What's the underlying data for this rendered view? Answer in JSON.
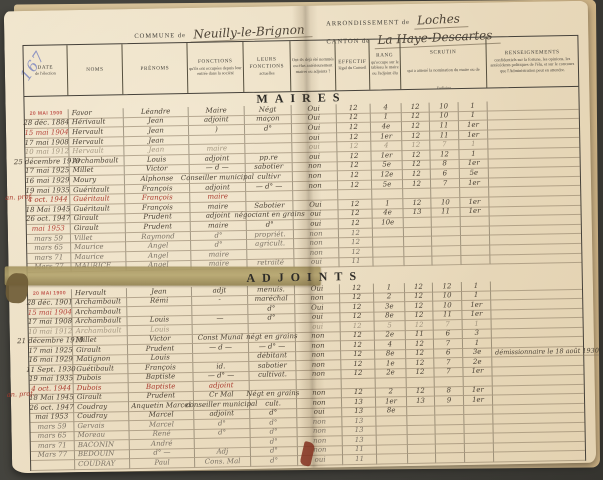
{
  "page": {
    "page_number": "167",
    "commune_label": "COMMUNE de",
    "commune_value": "Neuilly-le-Brignon",
    "arrondissement_label": "ARRONDISSEMENT de",
    "arrondissement_value": "Loches",
    "canton_label": "CANTON de",
    "canton_value": "La Haye-Descartes",
    "margin_note_maires": "an. prof.",
    "margin_note_adjoints": "an. prof.",
    "ink_colors": {
      "dark": "#4b4236",
      "red": "#a8392c",
      "faint": "#a2957f",
      "pencil": "#7b7265",
      "stamp": "#c25a50",
      "page_number_blue": "#7e88c0"
    }
  },
  "table": {
    "headers": {
      "date": {
        "main": "DATE",
        "sub": "de l'élection"
      },
      "noms": {
        "main": "NOMS",
        "sub": ""
      },
      "prenoms": {
        "main": "PRÉNOMS",
        "sub": ""
      },
      "fonctions": {
        "main": "FONCTIONS",
        "sub": "qu'ils ont occupées depuis leur entrée dans la société"
      },
      "actuelles": {
        "main": "LEURS FONCTIONS",
        "sub": "actuelles"
      },
      "deja": {
        "main": "",
        "sub": "Ont-ils déjà été nommés ou élus antérieurement maires ou adjoints ?"
      },
      "effectif": {
        "main": "EFFECTIF",
        "sub": "légal du Conseil"
      },
      "rang": {
        "main": "RANG",
        "sub": "qu'occupe sur le tableau le maire ou l'adjoint élu"
      },
      "scrutin": {
        "main": "SCRUTIN",
        "sub": "qui a amené la nomination du maire ou de l'adjoint"
      },
      "votants": {
        "main": "VOTANTS",
        "sub": ""
      },
      "voix": {
        "main": "NOMBRE",
        "sub": "de voix obtenues"
      },
      "tour": {
        "main": "",
        "sub": "Indiquer à quel tour de scrutin il a été élu"
      },
      "rens": {
        "main": "RENSEIGNEMENTS",
        "sub": "confidentiels sur la fortune, les opinions, les antécédents politiques de l'élu, et sur le concours que l'Administration peut en attendre."
      }
    },
    "sections": [
      {
        "title": "MAIRES",
        "rows": [
          {
            "date": "20 MAI 1900",
            "date_style": "stamp",
            "nom": "Favor",
            "prenom": "Léandre",
            "fonction": "Maire",
            "actuelle": "Négt",
            "deja": "Oui",
            "effectif": "12",
            "rang": "4",
            "votants": "12",
            "voix": "10",
            "tour": "1"
          },
          {
            "date": "28 déc. 1884",
            "nom": "Hérivault",
            "prenom": "Jean",
            "fonction": "adjoint",
            "actuelle": "maçon",
            "deja": "Oui",
            "effectif": "12",
            "rang": "1",
            "votants": "12",
            "voix": "10",
            "tour": "1"
          },
          {
            "date": "15 mai 1904",
            "date_style": "red",
            "nom": "Hervault",
            "prenom": "Jean",
            "fonction": ")",
            "actuelle": "d°",
            "deja": "Oui",
            "effectif": "12",
            "rang": "4e",
            "votants": "12",
            "voix": "11",
            "tour": "1er"
          },
          {
            "date": "17 mai 1908",
            "nom": "Hervault",
            "prenom": "Jean",
            "fonction": "",
            "actuelle": "",
            "deja": "oui",
            "effectif": "12",
            "rang": "1er",
            "votants": "12",
            "voix": "11",
            "tour": "1er"
          },
          {
            "date": "10 mai 1912",
            "ink": "faint",
            "nom": "Hervault",
            "prenom": "Jean",
            "fonction": "maire",
            "actuelle": "",
            "deja": "oui",
            "effectif": "12",
            "rang": "4",
            "votants": "12",
            "voix": "7",
            "tour": "1"
          },
          {
            "date": "25 décembre 1919",
            "nom": "Archambault",
            "prenom": "Louis",
            "fonction": "adjoint",
            "actuelle": "pp.re",
            "deja": "oui",
            "effectif": "12",
            "rang": "1er",
            "votants": "12",
            "voix": "12",
            "tour": "1"
          },
          {
            "date": "17 mai 1925",
            "nom": "Millet",
            "prenom": "Victor",
            "fonction": "— d —",
            "actuelle": "sabotier",
            "deja": "non",
            "effectif": "12",
            "rang": "5e",
            "votants": "12",
            "voix": "8",
            "tour": "1er"
          },
          {
            "date": "16 mai 1929",
            "nom": "Moury",
            "prenom": "Alphonse",
            "fonction": "Conseiller municipal",
            "actuelle": "cultivr",
            "deja": "non",
            "effectif": "12",
            "rang": "12e",
            "votants": "12",
            "voix": "6",
            "tour": "5e"
          },
          {
            "date": "19 mai 1935",
            "nom": "Guéritault",
            "prenom": "François",
            "fonction": "adjoint",
            "actuelle": "— d° —",
            "deja": "non",
            "effectif": "12",
            "rang": "5e",
            "votants": "12",
            "voix": "7",
            "tour": "1er"
          },
          {
            "date": "4 oct. 1944",
            "ink": "red",
            "nom": "Guéritault",
            "prenom": "François",
            "fonction": "maire",
            "actuelle": "",
            "deja": "",
            "effectif": "",
            "rang": "",
            "votants": "",
            "voix": "",
            "tour": ""
          },
          {
            "date": "18 Mai 1945",
            "nom": "Guéritault",
            "prenom": "François",
            "fonction": "maire",
            "actuelle": "Sabotier",
            "deja": "Oui",
            "effectif": "12",
            "rang": "1",
            "votants": "12",
            "voix": "10",
            "tour": "1er"
          },
          {
            "date": "26 oct. 1947",
            "nom": "Girault",
            "prenom": "Prudent",
            "fonction": "adjoint",
            "actuelle": "négociant en grains",
            "deja": "oui",
            "effectif": "12",
            "rang": "4e",
            "votants": "13",
            "voix": "11",
            "tour": "1er"
          },
          {
            "date": "mai 1953",
            "date_style": "red",
            "nom": "Girault",
            "prenom": "Prudent",
            "fonction": "maire",
            "actuelle": "d°",
            "deja": "oui",
            "effectif": "12",
            "rang": "10e",
            "votants": "",
            "voix": "",
            "tour": ""
          },
          {
            "date": "mars 59",
            "ink": "pencil",
            "nom": "Villet",
            "prenom": "Raymond",
            "fonction": "d°",
            "actuelle": "propriét.",
            "deja": "non",
            "effectif": "12",
            "rang": "",
            "votants": "",
            "voix": "",
            "tour": ""
          },
          {
            "date": "mars 65",
            "ink": "pencil",
            "nom": "Maurice",
            "prenom": "Angel",
            "fonction": "d°",
            "actuelle": "agricult.",
            "deja": "non",
            "effectif": "12",
            "rang": "",
            "votants": "",
            "voix": "",
            "tour": ""
          },
          {
            "date": "mars 71",
            "ink": "pencil",
            "nom": "Maurice",
            "prenom": "Angel",
            "fonction": "maire",
            "actuelle": "",
            "deja": "non",
            "effectif": "12",
            "rang": "",
            "votants": "",
            "voix": "",
            "tour": ""
          },
          {
            "date": "Mars 77",
            "ink": "pencil",
            "nom": "MAURICE",
            "prenom": "Angel",
            "fonction": "maire",
            "actuelle": "retraité",
            "deja": "oui",
            "effectif": "11",
            "rang": "",
            "votants": "",
            "voix": "",
            "tour": ""
          }
        ]
      },
      {
        "title": "ADJOINTS",
        "rows": [
          {
            "date": "20 MAI 1900",
            "date_style": "stamp",
            "nom": "Hervault",
            "prenom": "Jean",
            "fonction": "adjt",
            "actuelle": "menuis.",
            "deja": "Oui",
            "effectif": "12",
            "rang": "1",
            "votants": "12",
            "voix": "12",
            "tour": "1"
          },
          {
            "date": "28 déc. 1901",
            "nom": "Archambault",
            "prenom": "Rémi",
            "fonction": "-",
            "actuelle": "maréchal",
            "deja": "non",
            "effectif": "12",
            "rang": "2",
            "votants": "12",
            "voix": "10",
            "tour": "1"
          },
          {
            "date": "15 mai 1904",
            "date_style": "red",
            "nom": "Archambault",
            "prenom": "",
            "fonction": "",
            "actuelle": "d°",
            "deja": "Oui",
            "effectif": "12",
            "rang": "3e",
            "votants": "12",
            "voix": "10",
            "tour": "1er"
          },
          {
            "date": "17 mai 1908",
            "nom": "Archambault",
            "prenom": "Louis",
            "fonction": "—",
            "actuelle": "d°",
            "deja": "oui",
            "effectif": "12",
            "rang": "8e",
            "votants": "12",
            "voix": "11",
            "tour": "1er"
          },
          {
            "date": "10 mai 1912",
            "ink": "faint",
            "nom": "Archambault",
            "prenom": "Louis",
            "fonction": "",
            "actuelle": "",
            "deja": "oui",
            "effectif": "12",
            "rang": "5",
            "votants": "12",
            "voix": "7",
            "tour": "1"
          },
          {
            "date": "21 décembre 1919",
            "nom": "Millet",
            "prenom": "Victor",
            "fonction": "Const Munal",
            "actuelle": "négt en grains",
            "deja": "non",
            "effectif": "12",
            "rang": "2e",
            "votants": "11",
            "voix": "6",
            "tour": "3"
          },
          {
            "date": "17 mai 1925",
            "nom": "Girault",
            "prenom": "Prudent",
            "fonction": "— d —",
            "actuelle": "— d° —",
            "deja": "non",
            "effectif": "12",
            "rang": "4",
            "votants": "12",
            "voix": "7",
            "tour": "1"
          },
          {
            "date": "16 mai 1929",
            "nom": "Matignon",
            "prenom": "Louis",
            "fonction": "",
            "actuelle": "débitant",
            "deja": "non",
            "effectif": "12",
            "rang": "8e",
            "votants": "12",
            "voix": "6",
            "tour": "3e",
            "rens": "démissionnaire le 18 août 1930"
          },
          {
            "date": "11 Sept. 1930",
            "nom": "Guétibault",
            "prenom": "François",
            "fonction": "id.",
            "actuelle": "sabotier",
            "deja": "non",
            "effectif": "12",
            "rang": "1e",
            "votants": "12",
            "voix": "7",
            "tour": "2e"
          },
          {
            "date": "19 mai 1935",
            "nom": "Dubois",
            "prenom": "Baptiste",
            "fonction": "— d° —",
            "actuelle": "cultivat.",
            "deja": "non",
            "effectif": "12",
            "rang": "2e",
            "votants": "12",
            "voix": "7",
            "tour": "1er"
          },
          {
            "date": "4 oct. 1944",
            "ink": "red",
            "nom": "Dubois",
            "prenom": "Baptiste",
            "fonction": "adjoint",
            "actuelle": "",
            "deja": "",
            "effectif": "",
            "rang": "",
            "votants": "",
            "voix": "",
            "tour": ""
          },
          {
            "date": "18 Mai 1945",
            "nom": "Girault",
            "prenom": "Prudent",
            "fonction": "Cr Mal",
            "actuelle": "Négt en grains",
            "deja": "non",
            "effectif": "12",
            "rang": "2",
            "votants": "12",
            "voix": "8",
            "tour": "1er"
          },
          {
            "date": "26 oct. 1947",
            "nom": "Coudray",
            "prenom": "Anquetin Marcel",
            "fonction": "conseiller municipal",
            "actuelle": "cult.",
            "deja": "non",
            "effectif": "13",
            "rang": "1er",
            "votants": "13",
            "voix": "9",
            "tour": "1er"
          },
          {
            "date": "mai 1953",
            "nom": "Coudray",
            "prenom": "Marcel",
            "fonction": "adjoint",
            "actuelle": "d°",
            "deja": "oui",
            "effectif": "13",
            "rang": "8e",
            "votants": "",
            "voix": "",
            "tour": ""
          },
          {
            "date": "mars 59",
            "ink": "pencil",
            "nom": "Gervais",
            "prenom": "Marcel",
            "fonction": "d°",
            "actuelle": "d°",
            "deja": "non",
            "effectif": "13",
            "rang": "",
            "votants": "",
            "voix": "",
            "tour": ""
          },
          {
            "date": "mars 65",
            "ink": "pencil",
            "nom": "Moreau",
            "prenom": "René",
            "fonction": "d°",
            "actuelle": "d°",
            "deja": "non",
            "effectif": "13",
            "rang": "",
            "votants": "",
            "voix": "",
            "tour": ""
          },
          {
            "date": "mars 71",
            "ink": "pencil",
            "nom": "BACONIN",
            "prenom": "André",
            "fonction": "",
            "actuelle": "d°",
            "deja": "non",
            "effectif": "13",
            "rang": "",
            "votants": "",
            "voix": "",
            "tour": ""
          },
          {
            "date": "Mars 77",
            "ink": "pencil",
            "nom": "BEDOUIN",
            "prenom": "d° —",
            "fonction": "Adj",
            "actuelle": "d°",
            "deja": "non",
            "effectif": "11",
            "rang": "",
            "votants": "",
            "voix": "",
            "tour": ""
          },
          {
            "date": "",
            "ink": "pencil",
            "nom": "COUDRAY",
            "prenom": "Paul",
            "fonction": "Cons. Mal",
            "actuelle": "d°",
            "deja": "oui",
            "effectif": "11",
            "rang": "",
            "votants": "",
            "voix": "",
            "tour": ""
          }
        ]
      }
    ]
  }
}
